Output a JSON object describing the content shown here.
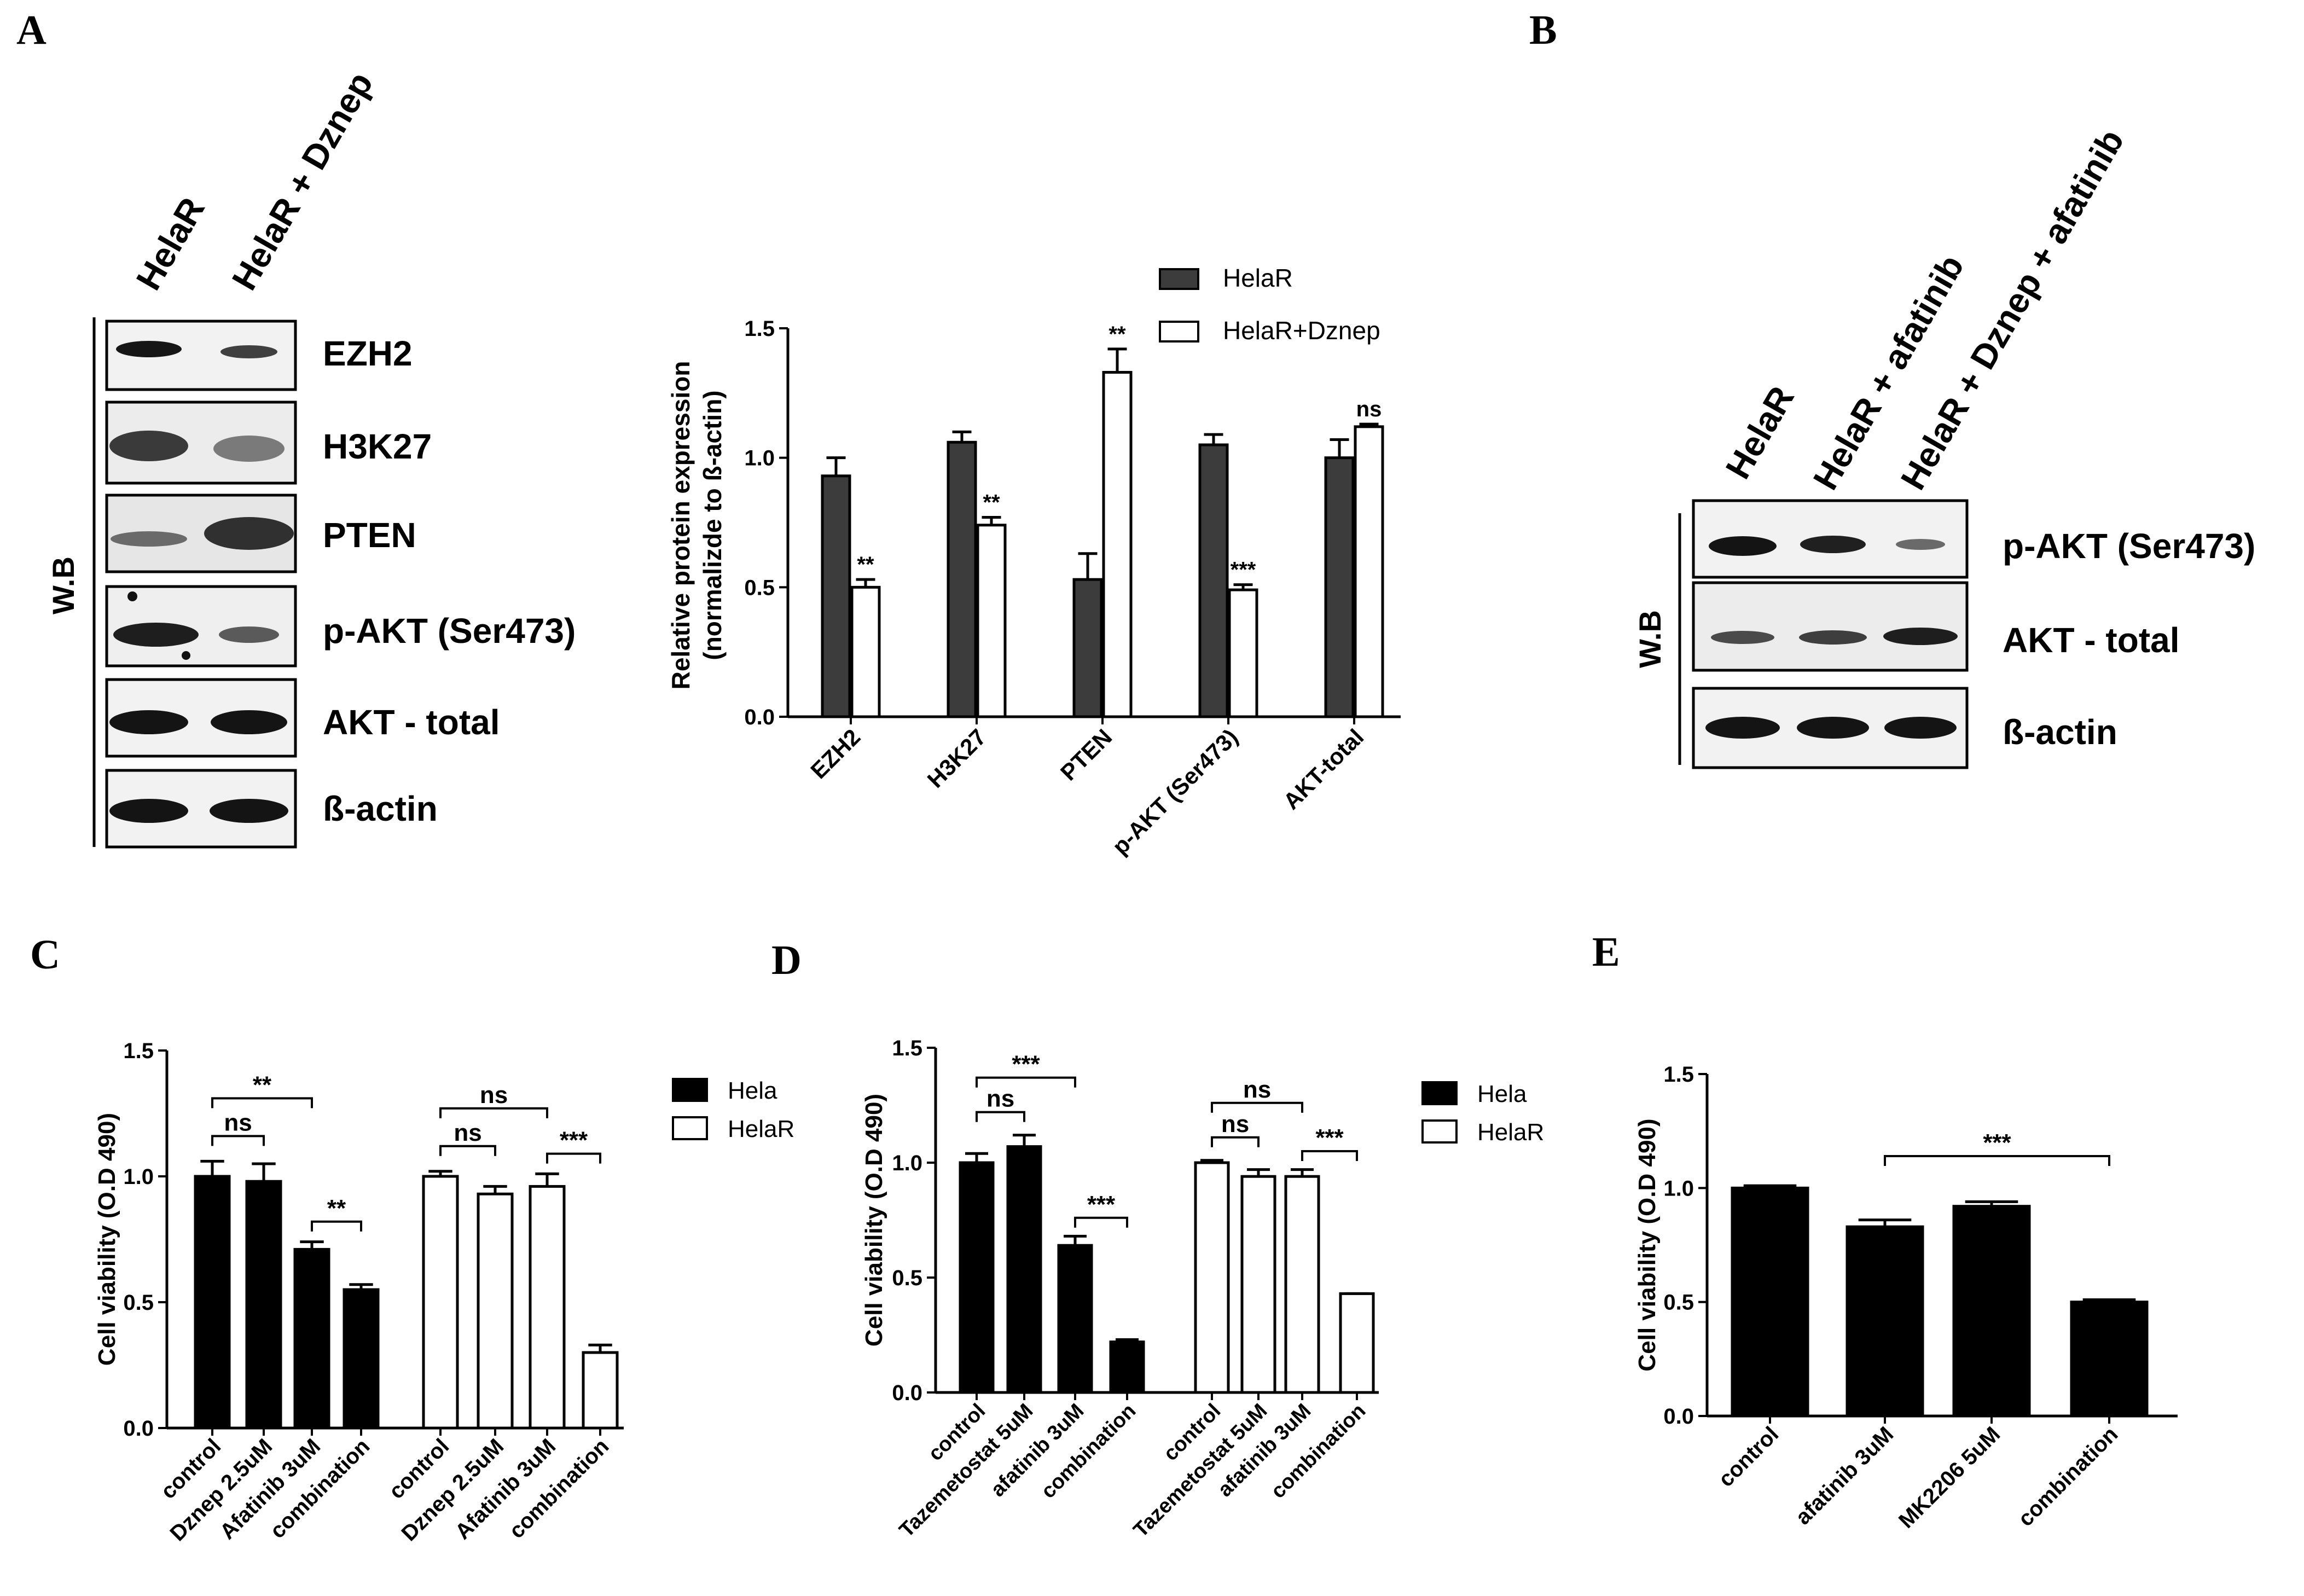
{
  "panel_labels": {
    "a": "A",
    "b": "B",
    "c": "C",
    "d": "D",
    "e": "E"
  },
  "colors": {
    "black": "#000000",
    "dark_bar": "#3c3c3c",
    "white": "#ffffff"
  },
  "blot_a": {
    "lanes": [
      "HelaR",
      "HelaR + Dznep"
    ],
    "side_label": "W.B",
    "bands": [
      "EZH2",
      "H3K27",
      "PTEN",
      "p-AKT (Ser473)",
      "AKT - total",
      "ß-actin"
    ]
  },
  "blot_b": {
    "lanes": [
      "HelaR",
      "HelaR + afatinib",
      "HelaR + Dznep + afatinib"
    ],
    "side_label": "W.B",
    "bands": [
      "p-AKT (Ser473)",
      "AKT - total",
      "ß-actin"
    ]
  },
  "chart_data": [
    {
      "id": "A_bar",
      "type": "bar",
      "title": "",
      "xlabel": "",
      "ylabel": "Relative protein expression (normalizde to ß-actin)",
      "ylabel_lines": [
        "Relative protein expression",
        "(normalizde to ß-actin)"
      ],
      "ylim": [
        0,
        1.5
      ],
      "yticks": [
        "0.0",
        "0.5",
        "1.0",
        "1.5"
      ],
      "categories": [
        "EZH2",
        "H3K27",
        "PTEN",
        "p-AKT (Ser473)",
        "AKT-total"
      ],
      "series": [
        {
          "name": "HelaR",
          "values": [
            0.93,
            1.06,
            0.53,
            1.05,
            1.0
          ],
          "errors": [
            0.07,
            0.04,
            0.1,
            0.04,
            0.07
          ]
        },
        {
          "name": "HelaR+Dznep",
          "values": [
            0.5,
            0.74,
            1.33,
            0.49,
            1.12
          ],
          "errors": [
            0.03,
            0.03,
            0.09,
            0.02,
            0.01
          ]
        }
      ],
      "annotations": [
        "**",
        "**",
        "**",
        "***",
        "ns"
      ],
      "legend_position": "top-right"
    },
    {
      "id": "C",
      "type": "bar",
      "title": "",
      "ylabel": "Cell viability (O.D 490)",
      "ylim": [
        0,
        1.5
      ],
      "yticks": [
        "0.0",
        "0.5",
        "1.0",
        "1.5"
      ],
      "categories": [
        "control",
        "Dznep 2.5uM",
        "Afatinib 3uM",
        "combination"
      ],
      "series": [
        {
          "name": "Hela",
          "values": [
            1.0,
            0.98,
            0.71,
            0.55
          ],
          "errors": [
            0.06,
            0.07,
            0.03,
            0.02
          ]
        },
        {
          "name": "HelaR",
          "values": [
            1.0,
            0.93,
            0.96,
            0.3
          ],
          "errors": [
            0.02,
            0.03,
            0.05,
            0.03
          ]
        }
      ],
      "brackets": [
        {
          "series": 0,
          "from": 0,
          "to": 1,
          "label": "ns"
        },
        {
          "series": 0,
          "from": 0,
          "to": 2,
          "label": "**"
        },
        {
          "series": 0,
          "from": 2,
          "to": 3,
          "label": "**"
        },
        {
          "series": 1,
          "from": 0,
          "to": 1,
          "label": "ns"
        },
        {
          "series": 1,
          "from": 0,
          "to": 2,
          "label": "ns"
        },
        {
          "series": 1,
          "from": 2,
          "to": 3,
          "label": "***"
        }
      ],
      "legend_position": "top-right"
    },
    {
      "id": "D",
      "type": "bar",
      "title": "",
      "ylabel": "Cell viability (O.D 490)",
      "ylim": [
        0,
        1.5
      ],
      "yticks": [
        "0.0",
        "0.5",
        "1.0",
        "1.5"
      ],
      "categories": [
        "control",
        "Tazemetostat 5uM",
        "afatinib 3uM",
        "combination"
      ],
      "series": [
        {
          "name": "Hela",
          "values": [
            1.0,
            1.07,
            0.64,
            0.22
          ],
          "errors": [
            0.04,
            0.05,
            0.04,
            0.01
          ]
        },
        {
          "name": "HelaR",
          "values": [
            1.0,
            0.94,
            0.94,
            0.43
          ],
          "errors": [
            0.01,
            0.03,
            0.03,
            0.0
          ]
        }
      ],
      "brackets": [
        {
          "series": 0,
          "from": 0,
          "to": 1,
          "label": "ns"
        },
        {
          "series": 0,
          "from": 0,
          "to": 2,
          "label": "***"
        },
        {
          "series": 0,
          "from": 2,
          "to": 3,
          "label": "***"
        },
        {
          "series": 1,
          "from": 0,
          "to": 1,
          "label": "ns"
        },
        {
          "series": 1,
          "from": 0,
          "to": 2,
          "label": "ns"
        },
        {
          "series": 1,
          "from": 2,
          "to": 3,
          "label": "***"
        }
      ],
      "legend_position": "top-right"
    },
    {
      "id": "E",
      "type": "bar",
      "title": "",
      "ylabel": "Cell viability (O.D 490)",
      "ylim": [
        0,
        1.5
      ],
      "yticks": [
        "0.0",
        "0.5",
        "1.0",
        "1.5"
      ],
      "categories": [
        "control",
        "afatinib 3uM",
        "MK2206 5uM",
        "combination"
      ],
      "series": [
        {
          "name": "",
          "values": [
            1.0,
            0.83,
            0.92,
            0.5
          ],
          "errors": [
            0.01,
            0.03,
            0.02,
            0.01
          ]
        }
      ],
      "brackets": [
        {
          "series": 0,
          "from": 1,
          "to": 3,
          "label": "***"
        }
      ]
    }
  ]
}
